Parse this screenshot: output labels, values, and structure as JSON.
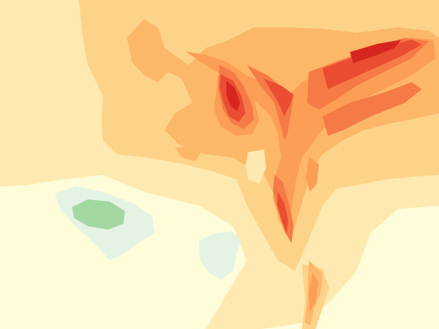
{
  "map": {
    "kind": "filled-contour-heatmap",
    "palette": {
      "level_neg2": "#a3d8a0",
      "level_neg1": "#e4f3e4",
      "level_0": "#fefcd9",
      "level_1": "#fee9b0",
      "level_2": "#fdd38a",
      "level_3": "#fdb768",
      "level_4": "#fc9e56",
      "level_5": "#f67a45",
      "level_6": "#ea4d32",
      "level_7": "#d7251f"
    },
    "labels": []
  }
}
